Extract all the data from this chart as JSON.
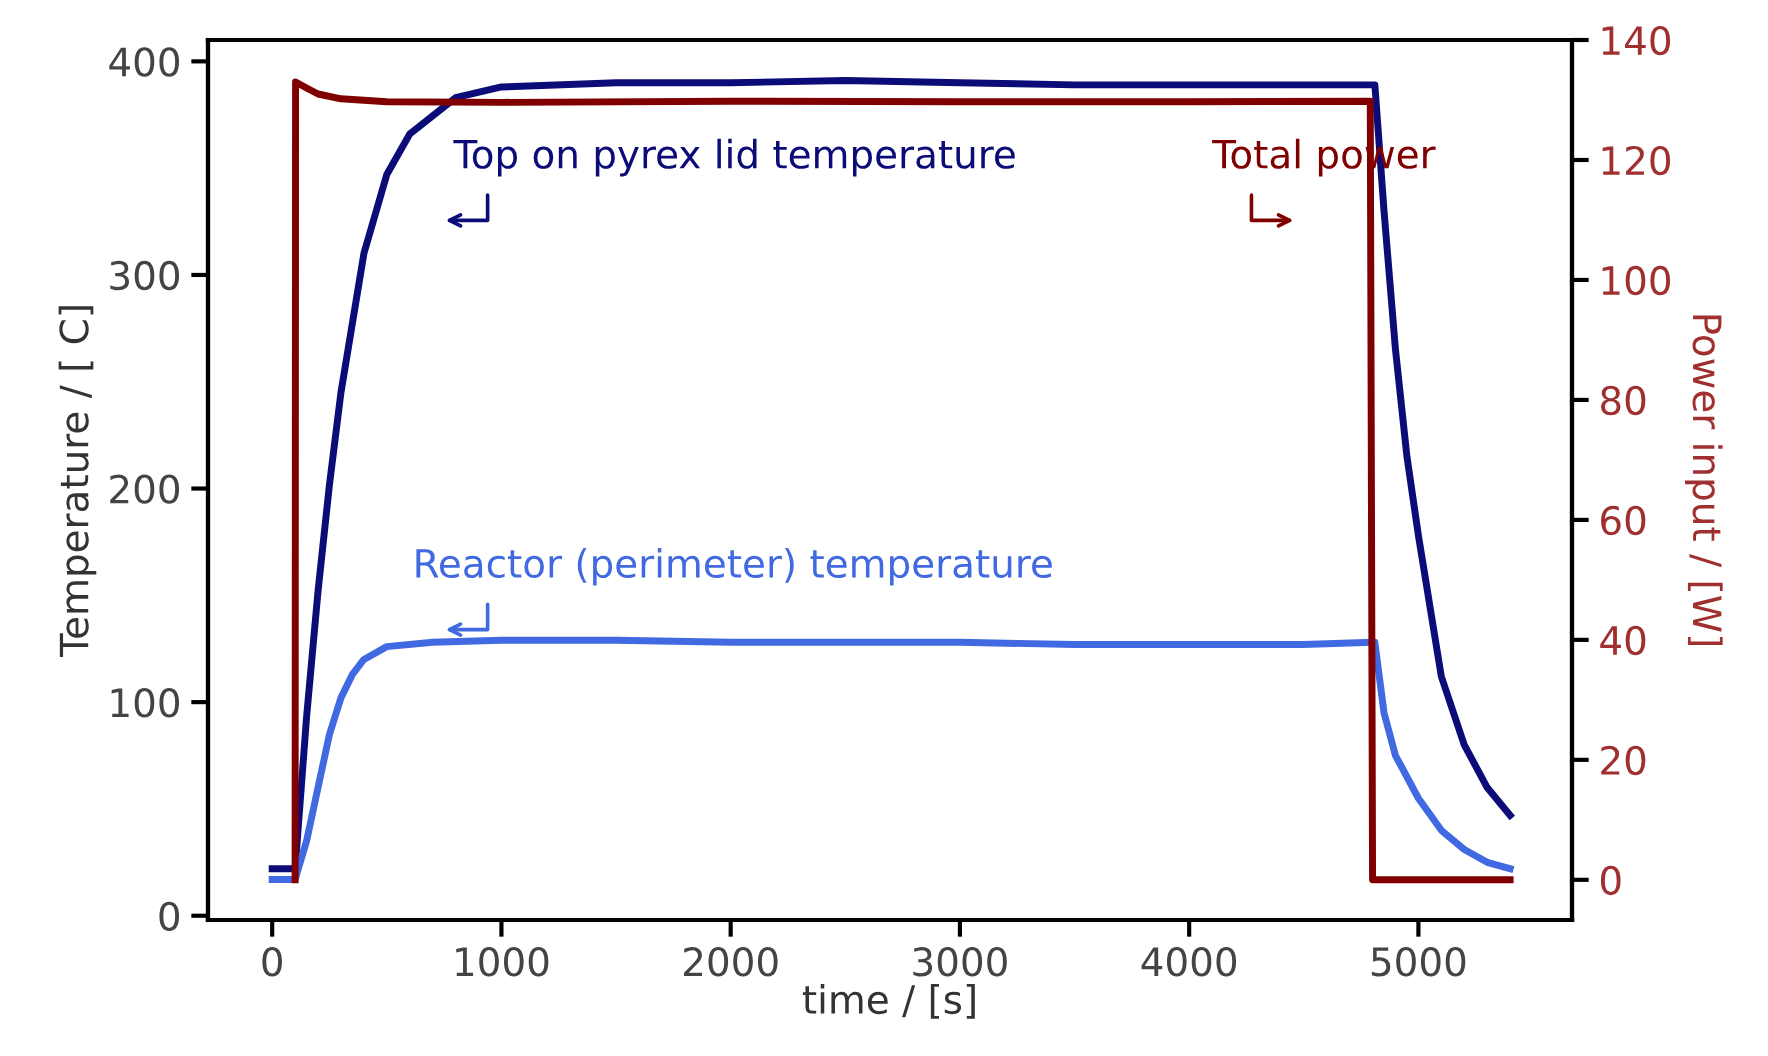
{
  "chart_data": {
    "type": "line",
    "xlabel": "time / [s]",
    "ylabel": "Temperature / [ C]",
    "y2label": "Power input / [W]",
    "xlim": [
      -280,
      5670
    ],
    "xticks": [
      0,
      1000,
      2000,
      3000,
      4000,
      5000
    ],
    "ylim": [
      -2,
      410
    ],
    "yticks": [
      0,
      100,
      200,
      300,
      400
    ],
    "y2lim": [
      -6.7,
      140
    ],
    "y2ticks": [
      0,
      20,
      40,
      60,
      80,
      100,
      120,
      140
    ],
    "grid": false,
    "legend": false,
    "marker": "none",
    "line_style": "solid",
    "series": [
      {
        "name": "Top on pyrex lid temperature",
        "color": "#0c0c78",
        "x": [
          0,
          100,
          150,
          200,
          250,
          300,
          400,
          500,
          600,
          800,
          1000,
          1500,
          2000,
          2500,
          3000,
          3500,
          4000,
          4500,
          4800,
          4810,
          4850,
          4900,
          4950,
          5000,
          5100,
          5200,
          5300,
          5400
        ],
        "values": [
          22,
          22,
          93,
          152,
          202,
          245,
          310,
          347,
          366,
          383,
          388,
          390,
          390,
          391,
          390,
          389,
          389,
          389,
          389,
          389,
          330,
          265,
          215,
          178,
          112,
          80,
          60,
          47
        ]
      },
      {
        "name": "Reactor (perimeter) temperature",
        "color": "#4169e1",
        "x": [
          0,
          100,
          150,
          200,
          250,
          300,
          350,
          400,
          500,
          700,
          1000,
          1500,
          2000,
          2500,
          3000,
          3500,
          4000,
          4500,
          4800,
          4810,
          4850,
          4900,
          5000,
          5100,
          5200,
          5300,
          5400
        ],
        "values": [
          17,
          17,
          35,
          60,
          85,
          102,
          113,
          120,
          126,
          128,
          129,
          129,
          128,
          128,
          128,
          127,
          127,
          127,
          128,
          128,
          95,
          75,
          55,
          40,
          31,
          25,
          22
        ]
      },
      {
        "name": "Total power",
        "color": "#800000",
        "axis": "y2",
        "x": [
          100,
          102,
          150,
          200,
          300,
          500,
          1000,
          2000,
          3000,
          4000,
          4790,
          4800,
          5400
        ],
        "values": [
          0,
          133,
          132,
          131,
          130.2,
          129.7,
          129.6,
          129.8,
          129.7,
          129.7,
          129.8,
          0,
          0
        ]
      }
    ]
  }
}
